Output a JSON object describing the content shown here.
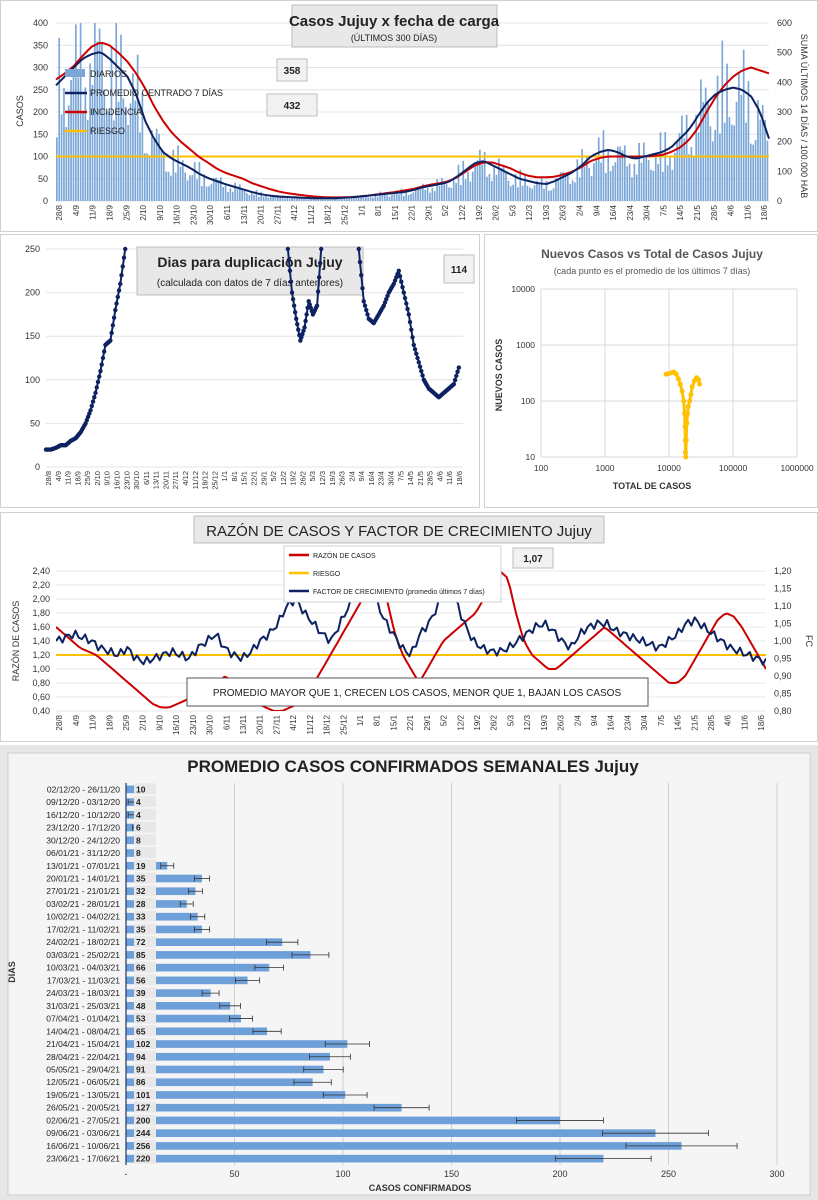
{
  "chart_data": [
    {
      "type": "line",
      "title": "Casos Jujuy x fecha de carga",
      "subtitle": "(ÚLTIMOS 300 DÍAS)",
      "ylabel": "CASOS",
      "y2label": "SUMA ÚLTIMOS 14 DÍAS / 100.000 HAB",
      "ylim": [
        0,
        400
      ],
      "y2lim": [
        0,
        600
      ],
      "yticks": [
        "0",
        "50",
        "100",
        "150",
        "200",
        "250",
        "300",
        "350",
        "400"
      ],
      "y2ticks": [
        "0",
        "100",
        "200",
        "300",
        "400",
        "500",
        "600"
      ],
      "x_tick_labels": [
        "28/8",
        "4/9",
        "11/9",
        "18/9",
        "25/9",
        "2/10",
        "9/10",
        "16/10",
        "23/10",
        "30/10",
        "6/11",
        "13/11",
        "20/11",
        "27/11",
        "4/12",
        "11/12",
        "18/12",
        "25/12",
        "1/1",
        "8/1",
        "15/1",
        "22/1",
        "29/1",
        "5/2",
        "12/2",
        "19/2",
        "26/2",
        "5/3",
        "12/3",
        "19/3",
        "26/3",
        "2/4",
        "9/4",
        "16/4",
        "23/4",
        "30/4",
        "7/5",
        "14/5",
        "21/5",
        "28/5",
        "4/6",
        "11/6",
        "18/6"
      ],
      "legend": [
        "DIARIOS",
        "PROMEDIO CENTRADO 7 DÍAS",
        "INCIDENCIA",
        "RIESGO"
      ],
      "annotations": [
        "358",
        "432"
      ],
      "series": [
        {
          "name": "PROMEDIO CENTRADO 7 DÍAS",
          "values": [
            260,
            280,
            300,
            320,
            330,
            335,
            320,
            300,
            280,
            240,
            180,
            140,
            110,
            95,
            85,
            75,
            62,
            52,
            45,
            38,
            32,
            26,
            20,
            15,
            12,
            10,
            9,
            8,
            7,
            6,
            6,
            6,
            7,
            8,
            10,
            12,
            14,
            16,
            18,
            20,
            24,
            30,
            34,
            38,
            42,
            55,
            70,
            85,
            90,
            80,
            70,
            60,
            50,
            45,
            40,
            38,
            45,
            55,
            65,
            80,
            100,
            110,
            115,
            110,
            100,
            95,
            100,
            105,
            110,
            120,
            140,
            160,
            190,
            220,
            240,
            250,
            255,
            250,
            235,
            200,
            140
          ]
        },
        {
          "name": "INCIDENCIA",
          "values": [
            410,
            430,
            455,
            490,
            520,
            535,
            525,
            500,
            470,
            430,
            380,
            320,
            270,
            230,
            200,
            175,
            150,
            130,
            110,
            95,
            85,
            75,
            60,
            50,
            40,
            32,
            26,
            22,
            18,
            15,
            13,
            12,
            12,
            13,
            15,
            18,
            22,
            26,
            30,
            35,
            40,
            48,
            55,
            60,
            66,
            80,
            100,
            120,
            130,
            130,
            120,
            110,
            95,
            85,
            80,
            80,
            82,
            90,
            100,
            115,
            135,
            145,
            150,
            150,
            150,
            150,
            150,
            152,
            155,
            165,
            180,
            205,
            245,
            300,
            350,
            390,
            420,
            440,
            450,
            440,
            430
          ]
        },
        {
          "name": "RIESGO",
          "values": [
            150
          ]
        }
      ]
    },
    {
      "type": "line",
      "title": "Dias para duplicación Jujuy",
      "subtitle": "(calculada con datos de 7 días anteriores)",
      "ylim": [
        0,
        250
      ],
      "yticks": [
        "0",
        "50",
        "100",
        "150",
        "200",
        "250"
      ],
      "x_tick_labels": [
        "28/8",
        "4/9",
        "11/9",
        "18/9",
        "25/9",
        "2/10",
        "9/10",
        "16/10",
        "23/10",
        "30/10",
        "6/11",
        "13/11",
        "20/11",
        "27/11",
        "4/12",
        "11/12",
        "18/12",
        "25/12",
        "1/1",
        "8/1",
        "15/1",
        "22/1",
        "29/1",
        "5/2",
        "12/2",
        "19/2",
        "26/2",
        "5/3",
        "12/3",
        "19/3",
        "26/3",
        "2/4",
        "9/4",
        "16/4",
        "23/4",
        "30/4",
        "7/5",
        "14/5",
        "21/5",
        "28/5",
        "4/6",
        "11/6",
        "18/6"
      ],
      "annotation": "114",
      "series": [
        {
          "name": "segment-1",
          "values": [
            20,
            20,
            22,
            25,
            25,
            30,
            33,
            40,
            50,
            65,
            85,
            110,
            140,
            145,
            180,
            210,
            250
          ]
        },
        {
          "name": "segment-2",
          "values": [
            250,
            200,
            170,
            145,
            160,
            190,
            175,
            185,
            250
          ]
        },
        {
          "name": "segment-3",
          "values": [
            250,
            190,
            170,
            165,
            175,
            185,
            200,
            210,
            225,
            200,
            175,
            140,
            120,
            100,
            90,
            85,
            80,
            85,
            90,
            95,
            114
          ]
        }
      ]
    },
    {
      "type": "scatter",
      "title": "Nuevos Casos vs Total de Casos Jujuy",
      "subtitle": "(cada punto es el promedio de los últimos 7 días)",
      "xlabel": "TOTAL DE CASOS",
      "ylabel": "NUEVOS CASOS",
      "xscale": "log",
      "yscale": "log",
      "xlim": [
        100,
        1000000
      ],
      "ylim": [
        10,
        10000
      ],
      "xticks": [
        "100",
        "1000",
        "10000",
        "100000",
        "1000000"
      ],
      "yticks": [
        "10",
        "100",
        "1000",
        "10000"
      ],
      "points": [
        [
          9000,
          300
        ],
        [
          10000,
          310
        ],
        [
          11000,
          320
        ],
        [
          12000,
          330
        ],
        [
          13000,
          300
        ],
        [
          14000,
          250
        ],
        [
          15000,
          200
        ],
        [
          16000,
          150
        ],
        [
          17000,
          100
        ],
        [
          17500,
          60
        ],
        [
          17800,
          35
        ],
        [
          18000,
          20
        ],
        [
          18100,
          12
        ],
        [
          18300,
          10
        ],
        [
          18600,
          20
        ],
        [
          19000,
          40
        ],
        [
          19500,
          60
        ],
        [
          20000,
          80
        ],
        [
          21000,
          100
        ],
        [
          22000,
          130
        ],
        [
          23000,
          180
        ],
        [
          25000,
          230
        ],
        [
          27000,
          260
        ],
        [
          29000,
          240
        ],
        [
          30000,
          200
        ]
      ]
    },
    {
      "type": "line",
      "title": "RAZÓN DE CASOS Y FACTOR DE CRECIMIENTO Jujuy",
      "ylabel": "RAZÓN DE CASOS",
      "y2label": "FC",
      "ylim": [
        0.4,
        2.4
      ],
      "y2lim": [
        0.8,
        1.2
      ],
      "yticks": [
        "0,40",
        "0,60",
        "0,80",
        "1,00",
        "1,20",
        "1,40",
        "1,60",
        "1,80",
        "2,00",
        "2,20",
        "2,40"
      ],
      "y2ticks": [
        "0,80",
        "0,85",
        "0,90",
        "0,95",
        "1,00",
        "1,05",
        "1,10",
        "1,15",
        "1,20"
      ],
      "x_tick_labels": [
        "28/8",
        "4/9",
        "11/9",
        "18/9",
        "25/9",
        "2/10",
        "9/10",
        "16/10",
        "23/10",
        "30/10",
        "6/11",
        "13/11",
        "20/11",
        "27/11",
        "4/12",
        "11/12",
        "18/12",
        "25/12",
        "1/1",
        "8/1",
        "15/1",
        "22/1",
        "29/1",
        "5/2",
        "12/2",
        "19/2",
        "26/2",
        "5/3",
        "12/3",
        "19/3",
        "26/3",
        "2/4",
        "9/4",
        "16/4",
        "23/4",
        "30/4",
        "7/5",
        "14/5",
        "21/5",
        "28/5",
        "4/6",
        "11/6",
        "18/6"
      ],
      "legend": [
        "RAZÓN DE CASOS",
        "RIESGO",
        "FACTOR DE CRECIMIENTO (promedio últimos 7 días)"
      ],
      "annotation": "1,07",
      "note": "PROMEDIO MAYOR QUE 1, CRECEN LOS CASOS, MENOR QUE 1, BAJAN LOS CASOS",
      "series": [
        {
          "name": "RAZÓN DE CASOS",
          "values": [
            1.6,
            1.5,
            1.4,
            1.3,
            1.25,
            1.2,
            1.1,
            1.0,
            0.9,
            0.8,
            0.7,
            0.6,
            0.5,
            0.45,
            0.45,
            0.5,
            0.55,
            0.6,
            0.65,
            0.7,
            0.8,
            0.9,
            0.8,
            0.7,
            0.6,
            0.5,
            0.45,
            0.4,
            0.4,
            0.45,
            0.5,
            0.6,
            0.8,
            1.0,
            1.2,
            1.4,
            1.6,
            1.8,
            2.0,
            2.2,
            2.3,
            2.0,
            1.5,
            1.2,
            1.0,
            0.8,
            1.0,
            1.2,
            1.4,
            1.5,
            1.6,
            1.7,
            1.8,
            2.0,
            2.2,
            2.4,
            2.3,
            1.8,
            1.4,
            1.2,
            1.1,
            1.0,
            1.0,
            1.1,
            1.2,
            1.3,
            1.4,
            1.5,
            1.6,
            1.5,
            1.4,
            1.3,
            1.2,
            1.1,
            1.0,
            0.9,
            0.8,
            0.8,
            0.9,
            1.1,
            1.3,
            1.5,
            1.7,
            1.8,
            1.75,
            1.6,
            1.4,
            1.2,
            1.0
          ]
        },
        {
          "name": "RIESGO",
          "values": [
            1.2
          ]
        },
        {
          "name": "FACTOR DE CRECIMIENTO (promedio últimos 7 días)",
          "values": [
            1.0,
            1.01,
            1.02,
            1.01,
            1.0,
            0.98,
            0.97,
            0.96,
            0.98,
            0.95,
            0.94,
            0.95,
            0.96,
            0.97,
            0.96,
            0.95,
            0.98,
            1.0,
            1.02,
            0.98,
            0.96,
            0.95,
            0.97,
            1.0,
            1.02,
            1.05,
            1.1,
            1.12,
            1.08,
            1.05,
            1.02,
            1.0,
            1.05,
            1.1,
            1.15,
            1.18,
            1.12,
            1.06,
            1.02,
            0.98,
            0.96,
            1.02,
            1.05,
            1.1,
            1.15,
            1.12,
            1.05,
            1.0,
            0.98,
            0.97,
            0.97,
            0.98,
            1.0,
            1.02,
            1.04,
            1.05,
            1.03,
            1.0,
            0.98,
            1.02,
            1.04,
            1.05,
            1.05,
            1.03,
            1.02,
            1.01,
            1.0,
            0.99,
            0.98,
            1.0,
            1.02,
            1.05,
            1.06,
            1.04,
            1.02,
            1.0,
            0.98,
            0.97,
            0.96,
            0.95,
            0.94
          ]
        }
      ]
    },
    {
      "type": "bar",
      "orientation": "horizontal",
      "title": "PROMEDIO CASOS CONFIRMADOS SEMANALES Jujuy",
      "xlabel": "CASOS CONFIRMADOS",
      "ylabel": "DIAS",
      "xlim": [
        0,
        300
      ],
      "xticks": [
        "-",
        "50",
        "100",
        "150",
        "200",
        "250",
        "300"
      ],
      "categories": [
        "02/12/20 - 26/11/20",
        "09/12/20 - 03/12/20",
        "16/12/20 - 10/12/20",
        "23/12/20 - 17/12/20",
        "30/12/20 - 24/12/20",
        "06/01/21 - 31/12/20",
        "13/01/21 - 07/01/21",
        "20/01/21 - 14/01/21",
        "27/01/21 - 21/01/21",
        "03/02/21 - 28/01/21",
        "10/02/21 - 04/02/21",
        "17/02/21 - 11/02/21",
        "24/02/21 - 18/02/21",
        "03/03/21 - 25/02/21",
        "10/03/21 - 04/03/21",
        "17/03/21 - 11/03/21",
        "24/03/21 - 18/03/21",
        "31/03/21 - 25/03/21",
        "07/04/21 - 01/04/21",
        "14/04/21 - 08/04/21",
        "21/04/21 - 15/04/21",
        "28/04/21 - 22/04/21",
        "05/05/21 - 29/04/21",
        "12/05/21 - 06/05/21",
        "19/05/21 - 13/05/21",
        "26/05/21 - 20/05/21",
        "02/06/21 - 27/05/21",
        "09/06/21 - 03/06/21",
        "16/06/21 - 10/06/21",
        "23/06/21 - 17/06/21"
      ],
      "values": [
        10,
        4,
        4,
        6,
        8,
        8,
        19,
        35,
        32,
        28,
        33,
        35,
        72,
        85,
        66,
        56,
        39,
        48,
        53,
        65,
        102,
        94,
        91,
        86,
        101,
        127,
        200,
        244,
        256,
        220
      ],
      "value_labels": [
        "10",
        "4",
        "4",
        "6",
        "8",
        "8",
        "19",
        "35",
        "32",
        "28",
        "33",
        "35",
        "72",
        "85",
        "66",
        "56",
        "39",
        "48",
        "53",
        "65",
        "102",
        "94",
        "91",
        "86",
        "101",
        "127",
        "200",
        "244",
        "256",
        "220"
      ]
    }
  ],
  "colors": {
    "daily_bar": "#7aa6d8",
    "avg_line": "#0d2260",
    "incidence_line": "#cc0000",
    "risk_line": "#ffc000",
    "scatter": "#ffc000",
    "weekly_bar": "#6d9fd9",
    "panel_bg_gray": "#e8e8e8"
  }
}
